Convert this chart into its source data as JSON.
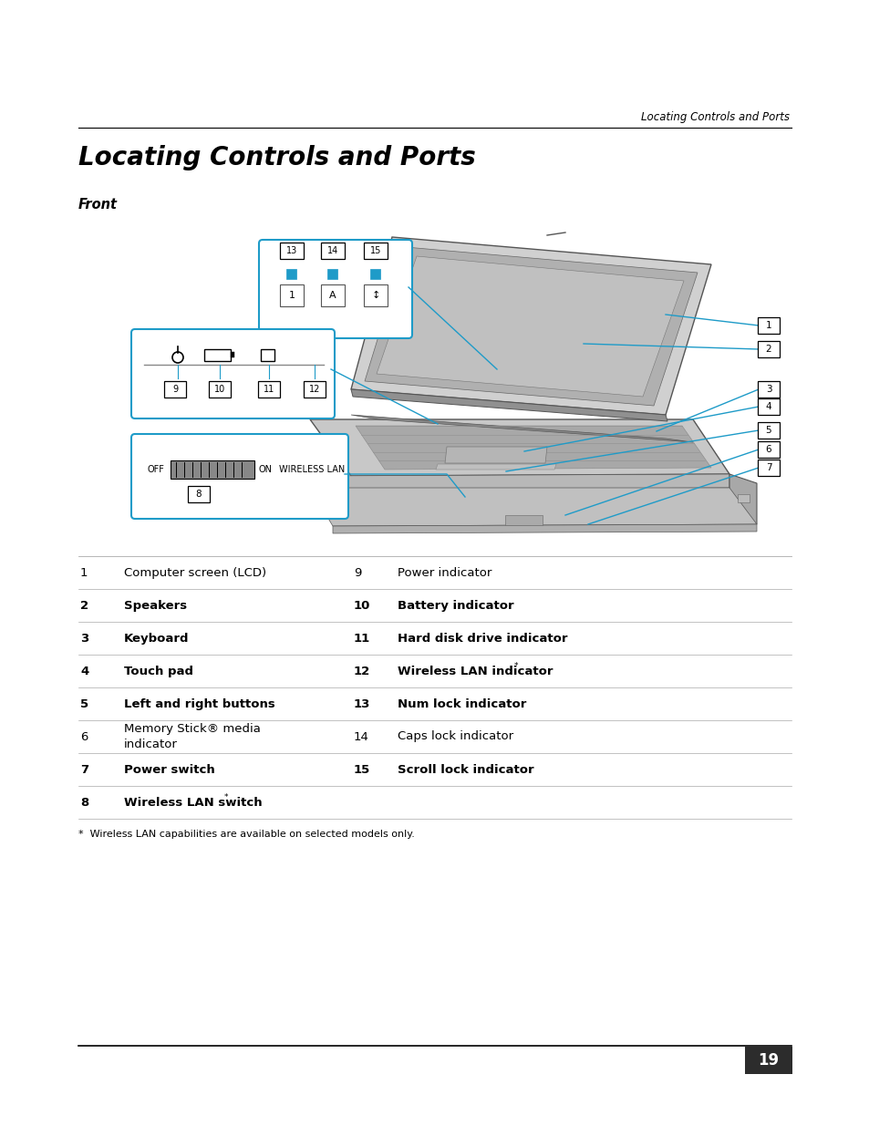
{
  "bg_color": "#ffffff",
  "text_color": "#000000",
  "cyan_color": "#1e9bc8",
  "gray_laptop": "#c8c8c8",
  "gray_dark": "#888888",
  "gray_mid": "#aaaaaa",
  "line_color": "#cccccc",
  "header_italic": "Locating Controls and Ports",
  "title": "Locating Controls and Ports",
  "subtitle": "Front",
  "page_number": "19",
  "footnote": "*  Wireless LAN capabilities are available on selected models only.",
  "table_rows": [
    {
      "n1": "1",
      "l1": "Computer screen (LCD)",
      "bold1": false,
      "n2": "9",
      "l2": "Power indicator",
      "bold2": false
    },
    {
      "n1": "2",
      "l1": "Speakers",
      "bold1": true,
      "n2": "10",
      "l2": "Battery indicator",
      "bold2": true
    },
    {
      "n1": "3",
      "l1": "Keyboard",
      "bold1": true,
      "n2": "11",
      "l2": "Hard disk drive indicator",
      "bold2": true
    },
    {
      "n1": "4",
      "l1": "Touch pad",
      "bold1": true,
      "n2": "12",
      "l2": "Wireless LAN indicator*",
      "bold2": true
    },
    {
      "n1": "5",
      "l1": "Left and right buttons",
      "bold1": true,
      "n2": "13",
      "l2": "Num lock indicator",
      "bold2": true
    },
    {
      "n1": "6",
      "l1": "Memory Stick® media\nindicator",
      "bold1": false,
      "n2": "14",
      "l2": "Caps lock indicator",
      "bold2": false
    },
    {
      "n1": "7",
      "l1": "Power switch",
      "bold1": true,
      "n2": "15",
      "l2": "Scroll lock indicator",
      "bold2": true
    },
    {
      "n1": "8",
      "l1": "Wireless LAN switch*",
      "bold1": true,
      "n2": "",
      "l2": "",
      "bold2": false
    }
  ]
}
